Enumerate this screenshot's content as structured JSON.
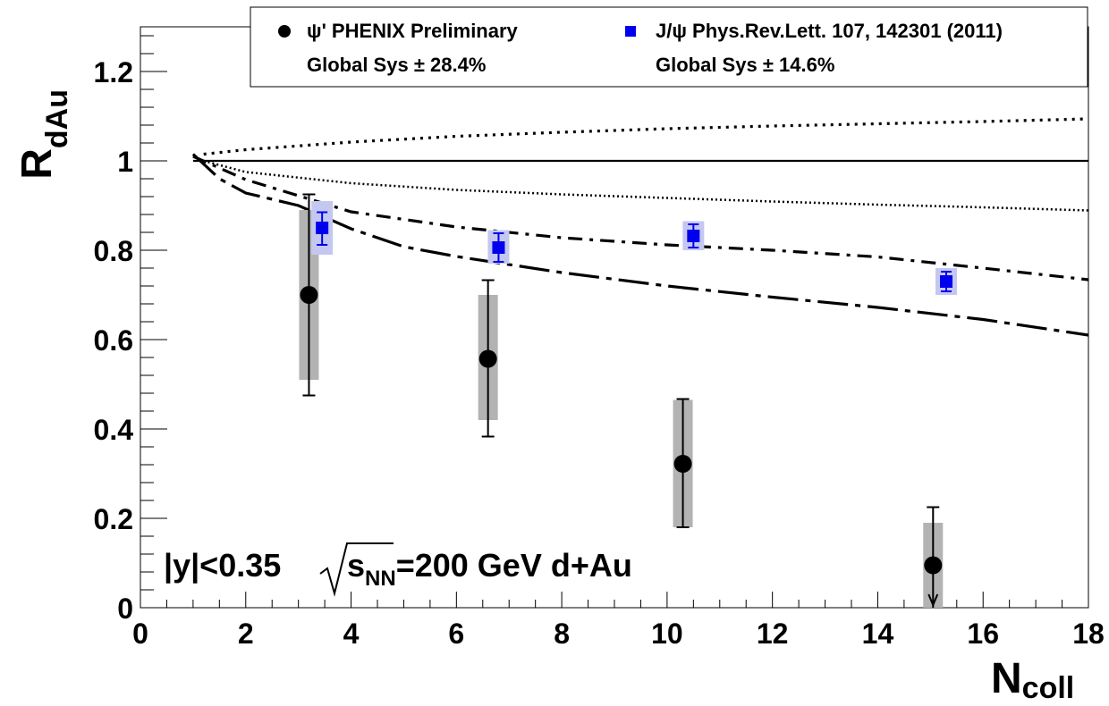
{
  "chart_data": {
    "type": "scatter",
    "xlabel": {
      "main": "N",
      "sub": "coll"
    },
    "ylabel": {
      "main": "R",
      "sub": "dAu"
    },
    "xlim": [
      0,
      18
    ],
    "ylim": [
      0,
      1.3
    ],
    "xticks": [
      {
        "v": 0,
        "label": "0"
      },
      {
        "v": 2,
        "label": "2"
      },
      {
        "v": 4,
        "label": "4"
      },
      {
        "v": 6,
        "label": "6"
      },
      {
        "v": 8,
        "label": "8"
      },
      {
        "v": 10,
        "label": "10"
      },
      {
        "v": 12,
        "label": "12"
      },
      {
        "v": 14,
        "label": "14"
      },
      {
        "v": 16,
        "label": "16"
      },
      {
        "v": 18,
        "label": "18"
      }
    ],
    "yticks": [
      {
        "v": 0,
        "label": "0"
      },
      {
        "v": 0.2,
        "label": "0.2"
      },
      {
        "v": 0.4,
        "label": "0.4"
      },
      {
        "v": 0.6,
        "label": "0.6"
      },
      {
        "v": 0.8,
        "label": "0.8"
      },
      {
        "v": 1.0,
        "label": "1"
      },
      {
        "v": 1.2,
        "label": "1.2"
      }
    ],
    "grid": false,
    "legend_position": "top",
    "series": [
      {
        "name": "ψ' PHENIX Preliminary",
        "global_sys": "Global Sys ± 28.4%",
        "marker": "circle",
        "color": "#000000",
        "syst_box_color": "#b3b3b3",
        "points": [
          {
            "x": 3.2,
            "y": 0.7,
            "err_hi": 0.925,
            "err_lo": 0.475,
            "sys_hi": 0.89,
            "sys_lo": 0.51
          },
          {
            "x": 6.6,
            "y": 0.557,
            "err_hi": 0.733,
            "err_lo": 0.383,
            "sys_hi": 0.7,
            "sys_lo": 0.42
          },
          {
            "x": 10.3,
            "y": 0.322,
            "err_hi": 0.467,
            "err_lo": 0.18,
            "sys_hi": 0.465,
            "sys_lo": 0.18
          },
          {
            "x": 15.05,
            "y": 0.095,
            "err_hi": 0.225,
            "err_lo": 0.0,
            "sys_hi": 0.19,
            "sys_lo": 0.0,
            "upper_limit_arrow": true
          }
        ]
      },
      {
        "name": "J/ψ Phys.Rev.Lett. 107, 142301 (2011)",
        "global_sys": "Global Sys ± 14.6%",
        "marker": "square",
        "color": "#0000ee",
        "syst_box_color": "#c4c8f0",
        "points": [
          {
            "x": 3.45,
            "y": 0.85,
            "err_hi": 0.885,
            "err_lo": 0.812,
            "sys_hi": 0.91,
            "sys_lo": 0.79
          },
          {
            "x": 6.8,
            "y": 0.806,
            "err_hi": 0.838,
            "err_lo": 0.774,
            "sys_hi": 0.845,
            "sys_lo": 0.77
          },
          {
            "x": 10.5,
            "y": 0.832,
            "err_hi": 0.858,
            "err_lo": 0.806,
            "sys_hi": 0.865,
            "sys_lo": 0.8
          },
          {
            "x": 15.3,
            "y": 0.73,
            "err_hi": 0.752,
            "err_lo": 0.708,
            "sys_hi": 0.76,
            "sys_lo": 0.7
          }
        ]
      }
    ],
    "curves": [
      {
        "style": "solid",
        "points": [
          [
            1.0,
            1.0
          ],
          [
            18,
            1.0
          ]
        ]
      },
      {
        "style": "dotted-coarse",
        "points": [
          [
            1.2,
            1.015
          ],
          [
            2,
            1.025
          ],
          [
            4,
            1.042
          ],
          [
            6,
            1.055
          ],
          [
            8,
            1.064
          ],
          [
            10,
            1.072
          ],
          [
            12,
            1.078
          ],
          [
            14,
            1.083
          ],
          [
            16,
            1.088
          ],
          [
            18,
            1.094
          ]
        ]
      },
      {
        "style": "dotted-fine",
        "points": [
          [
            1.2,
            1.0
          ],
          [
            2,
            0.975
          ],
          [
            4,
            0.95
          ],
          [
            6,
            0.935
          ],
          [
            8,
            0.925
          ],
          [
            10,
            0.917
          ],
          [
            12,
            0.909
          ],
          [
            14,
            0.902
          ],
          [
            16,
            0.896
          ],
          [
            18,
            0.889
          ]
        ]
      },
      {
        "style": "dash-dot-short",
        "points": [
          [
            1.0,
            1.01
          ],
          [
            2,
            0.958
          ],
          [
            4,
            0.886
          ],
          [
            6,
            0.852
          ],
          [
            8,
            0.828
          ],
          [
            10,
            0.812
          ],
          [
            12,
            0.8
          ],
          [
            14,
            0.785
          ],
          [
            16,
            0.76
          ],
          [
            18,
            0.734
          ]
        ]
      },
      {
        "style": "dash-dot-long",
        "points": [
          [
            1.0,
            1.015
          ],
          [
            1.5,
            0.96
          ],
          [
            2,
            0.928
          ],
          [
            3,
            0.9
          ],
          [
            4,
            0.848
          ],
          [
            5,
            0.808
          ],
          [
            6,
            0.786
          ],
          [
            8,
            0.75
          ],
          [
            10,
            0.72
          ],
          [
            12,
            0.695
          ],
          [
            14,
            0.672
          ],
          [
            16,
            0.645
          ],
          [
            18,
            0.61
          ]
        ]
      }
    ],
    "annotation": {
      "text_y": "|y|<0.35",
      "sqrt_s": "s",
      "sqrt_s_sub": "NN",
      "rest": "=200 GeV d+Au"
    }
  }
}
